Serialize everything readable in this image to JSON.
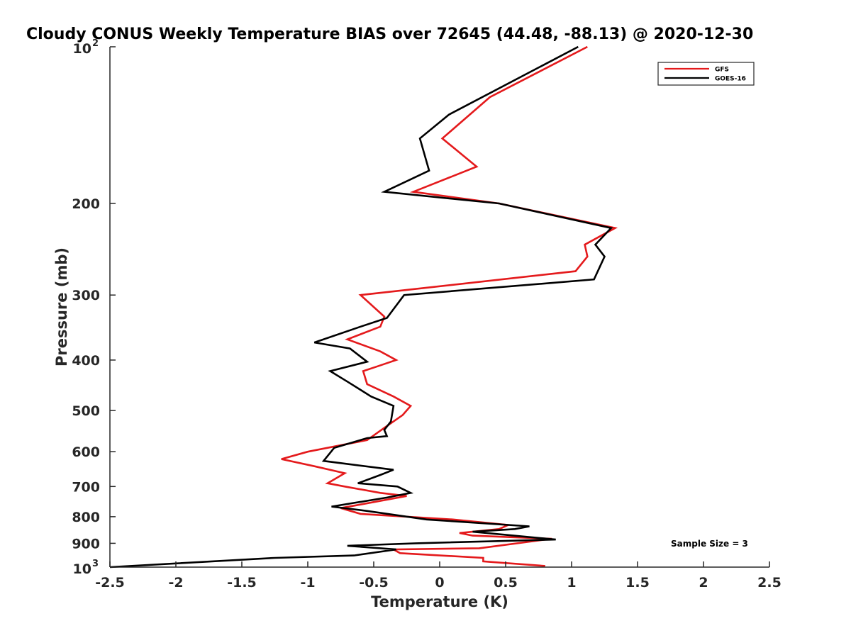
{
  "chart_data": {
    "type": "line",
    "title": "Cloudy CONUS Weekly Temperature BIAS over 72645 (44.48, -88.13) @ 2020-12-30",
    "xlabel": "Temperature (K)",
    "ylabel": "Pressure (mb)",
    "xlim": [
      -2.5,
      2.5
    ],
    "ylim": [
      100,
      1000
    ],
    "yscale": "log",
    "yreversed": true,
    "grid": false,
    "legend_position": "top-right",
    "x_ticks": [
      "-2.5",
      "-2",
      "-1.5",
      "-1",
      "-0.5",
      "0",
      "0.5",
      "1",
      "1.5",
      "2",
      "2.5"
    ],
    "y_ticks": [
      {
        "value": 100,
        "base": "10",
        "exp": "2"
      },
      {
        "value": 200,
        "label": "200"
      },
      {
        "value": 300,
        "label": "300"
      },
      {
        "value": 400,
        "label": "400"
      },
      {
        "value": 500,
        "label": "500"
      },
      {
        "value": 600,
        "label": "600"
      },
      {
        "value": 700,
        "label": "700"
      },
      {
        "value": 800,
        "label": "800"
      },
      {
        "value": 900,
        "label": "900"
      },
      {
        "value": 1000,
        "base": "10",
        "exp": "3"
      }
    ],
    "annotation": "Sample Size = 3",
    "series": [
      {
        "name": "GFS",
        "color": "#e41a1c",
        "points": [
          [
            1.12,
            100
          ],
          [
            0.38,
            125
          ],
          [
            0.02,
            150
          ],
          [
            0.28,
            170
          ],
          [
            -0.2,
            190
          ],
          [
            0.45,
            200
          ],
          [
            1.33,
            223
          ],
          [
            1.1,
            240
          ],
          [
            1.12,
            253
          ],
          [
            1.03,
            270
          ],
          [
            -0.6,
            300
          ],
          [
            -0.42,
            330
          ],
          [
            -0.45,
            345
          ],
          [
            -0.7,
            365
          ],
          [
            -0.45,
            385
          ],
          [
            -0.33,
            400
          ],
          [
            -0.48,
            412
          ],
          [
            -0.58,
            420
          ],
          [
            -0.55,
            445
          ],
          [
            -0.35,
            470
          ],
          [
            -0.22,
            490
          ],
          [
            -0.28,
            510
          ],
          [
            -0.42,
            540
          ],
          [
            -0.55,
            570
          ],
          [
            -1.0,
            600
          ],
          [
            -1.2,
            620
          ],
          [
            -0.95,
            640
          ],
          [
            -0.72,
            660
          ],
          [
            -0.85,
            690
          ],
          [
            -0.72,
            700
          ],
          [
            -0.45,
            720
          ],
          [
            -0.25,
            730
          ],
          [
            -0.6,
            758
          ],
          [
            -0.75,
            770
          ],
          [
            -0.6,
            790
          ],
          [
            0.1,
            810
          ],
          [
            0.52,
            830
          ],
          [
            0.45,
            845
          ],
          [
            0.15,
            860
          ],
          [
            0.25,
            870
          ],
          [
            0.85,
            882
          ],
          [
            0.3,
            920
          ],
          [
            -0.35,
            925
          ],
          [
            -0.3,
            940
          ],
          [
            0.33,
            960
          ],
          [
            0.33,
            975
          ],
          [
            0.8,
            995
          ]
        ]
      },
      {
        "name": "GOES-16",
        "color": "#000000",
        "points": [
          [
            1.05,
            100
          ],
          [
            0.07,
            135
          ],
          [
            -0.15,
            150
          ],
          [
            -0.08,
            173
          ],
          [
            -0.42,
            190
          ],
          [
            0.45,
            200
          ],
          [
            1.3,
            223
          ],
          [
            1.18,
            240
          ],
          [
            1.25,
            253
          ],
          [
            1.17,
            280
          ],
          [
            -0.27,
            300
          ],
          [
            -0.4,
            332
          ],
          [
            -0.6,
            345
          ],
          [
            -0.95,
            370
          ],
          [
            -0.68,
            380
          ],
          [
            -0.55,
            403
          ],
          [
            -0.83,
            420
          ],
          [
            -0.7,
            440
          ],
          [
            -0.52,
            470
          ],
          [
            -0.35,
            490
          ],
          [
            -0.37,
            525
          ],
          [
            -0.42,
            545
          ],
          [
            -0.4,
            560
          ],
          [
            -0.55,
            565
          ],
          [
            -0.8,
            590
          ],
          [
            -0.88,
            625
          ],
          [
            -0.35,
            650
          ],
          [
            -0.45,
            665
          ],
          [
            -0.62,
            690
          ],
          [
            -0.32,
            700
          ],
          [
            -0.22,
            720
          ],
          [
            -0.4,
            735
          ],
          [
            -0.82,
            765
          ],
          [
            -0.55,
            780
          ],
          [
            -0.1,
            810
          ],
          [
            0.68,
            835
          ],
          [
            0.57,
            845
          ],
          [
            0.25,
            855
          ],
          [
            0.88,
            885
          ],
          [
            -0.18,
            900
          ],
          [
            -0.7,
            910
          ],
          [
            -0.33,
            925
          ],
          [
            -0.65,
            950
          ],
          [
            -1.25,
            960
          ],
          [
            -2.5,
            1000
          ]
        ]
      }
    ]
  }
}
